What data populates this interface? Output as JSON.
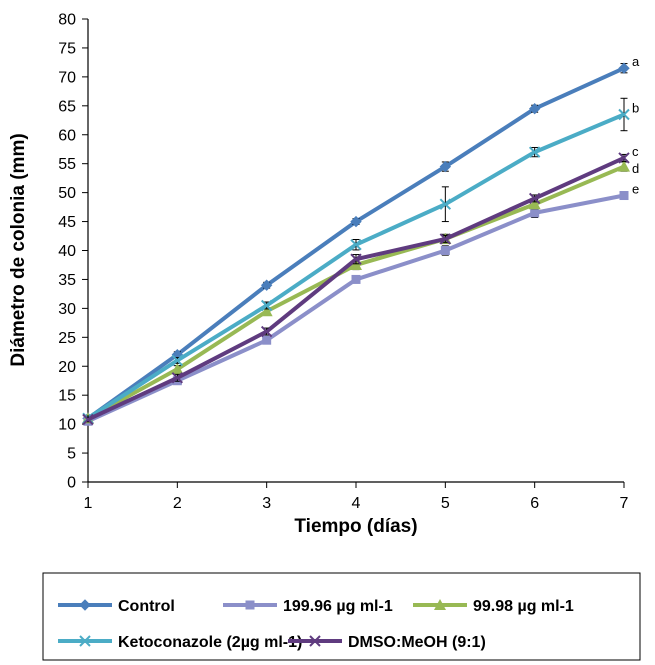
{
  "chart_data": {
    "type": "line",
    "xlabel": "Tiempo (días)",
    "ylabel": "Diámetro de colonia (mm)",
    "x": [
      1,
      2,
      3,
      4,
      5,
      6,
      7
    ],
    "xlim": [
      1,
      7
    ],
    "ylim": [
      0,
      80
    ],
    "y_ticks": [
      0,
      5,
      10,
      15,
      20,
      25,
      30,
      35,
      40,
      45,
      50,
      55,
      60,
      65,
      70,
      75,
      80
    ],
    "grid": false,
    "legend_position": "bottom",
    "series": [
      {
        "name": "Control",
        "color": "#4a7ebb",
        "marker": "diamond",
        "values": [
          11.0,
          22.0,
          34.0,
          45.0,
          54.5,
          64.5,
          71.5
        ],
        "errors": [
          0.4,
          0.5,
          0.5,
          0.5,
          0.8,
          0.6,
          0.8
        ],
        "letter": "a"
      },
      {
        "name": "199.96 µg ml-1",
        "color": "#8b8fc9",
        "marker": "square",
        "values": [
          10.5,
          17.5,
          24.5,
          35.0,
          40.0,
          46.5,
          49.5
        ],
        "errors": [
          0.4,
          0.6,
          0.6,
          0.6,
          0.8,
          0.8,
          0.6
        ],
        "letter": "e"
      },
      {
        "name": "99.98 µg ml-1",
        "color": "#98b954",
        "marker": "triangle",
        "values": [
          11.0,
          19.5,
          29.5,
          37.5,
          42.0,
          48.0,
          54.5
        ],
        "errors": [
          0.4,
          0.6,
          0.6,
          0.8,
          0.8,
          0.8,
          0.8
        ],
        "letter": "d"
      },
      {
        "name": "Ketoconazole (2µg ml-1)",
        "color": "#4bacc6",
        "marker": "x",
        "values": [
          11.0,
          21.0,
          30.5,
          41.0,
          48.0,
          57.0,
          63.5
        ],
        "errors": [
          0.4,
          0.5,
          0.6,
          0.9,
          3.0,
          0.8,
          2.8
        ],
        "letter": "b"
      },
      {
        "name": "DMSO:MeOH (9:1)",
        "color": "#5f3b7f",
        "marker": "x",
        "values": [
          10.8,
          18.0,
          26.0,
          38.5,
          42.0,
          49.0,
          56.0
        ],
        "errors": [
          0.4,
          0.6,
          0.6,
          0.8,
          0.6,
          0.6,
          0.6
        ],
        "letter": "c"
      }
    ]
  }
}
